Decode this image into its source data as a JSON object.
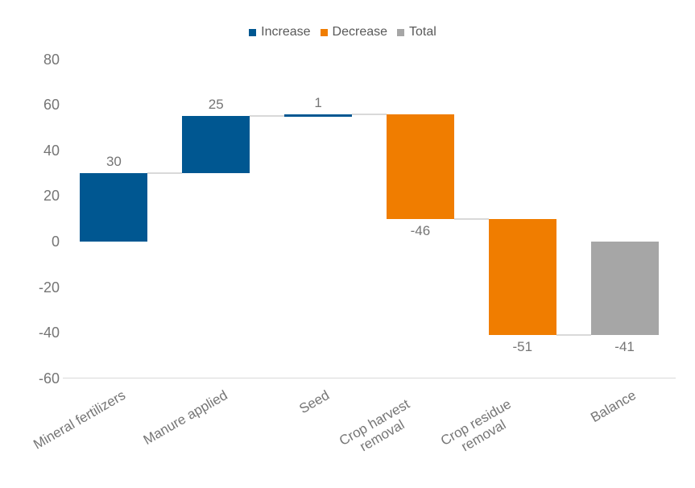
{
  "chart_data": {
    "type": "bar",
    "subtype": "waterfall",
    "title": "",
    "categories": [
      "Mineral fertilizers",
      "Manure applied",
      "Seed",
      "Crop harvest removal",
      "Crop residue removal",
      "Balance"
    ],
    "values": [
      30,
      25,
      1,
      -46,
      -51,
      -41
    ],
    "bar_roles": [
      "increase",
      "increase",
      "increase",
      "decrease",
      "decrease",
      "total"
    ],
    "running_start": [
      0,
      30,
      55,
      56,
      10,
      0
    ],
    "running_end": [
      30,
      55,
      56,
      10,
      -41,
      -41
    ],
    "data_labels": [
      "30",
      "25",
      "1",
      "-46",
      "-51",
      "-41"
    ],
    "label_positions": [
      "above",
      "above",
      "above",
      "below",
      "below",
      "below"
    ],
    "x_labels_text": [
      "Mineral fertilizers",
      "Manure applied",
      "Seed",
      "Crop harvest\nremoval",
      "Crop residue\nremoval",
      "Balance"
    ],
    "ytick_values": [
      80,
      60,
      40,
      20,
      0,
      -20,
      -40,
      -60
    ],
    "ytick_labels": [
      "80",
      "60",
      "40",
      "20",
      "0",
      "-20",
      "-40",
      "-60"
    ],
    "ylim": [
      -60,
      80
    ],
    "grid": false,
    "legend_position": "top",
    "legend": [
      {
        "label": "Increase",
        "role": "increase",
        "color": "#005791"
      },
      {
        "label": "Decrease",
        "role": "decrease",
        "color": "#F07D00"
      },
      {
        "label": "Total",
        "role": "total",
        "color": "#A6A6A6"
      }
    ]
  },
  "colors": {
    "increase": "#005791",
    "decrease": "#F07D00",
    "total": "#A6A6A6",
    "connector": "#D9D9D9",
    "axis_line": "#D9D9D9",
    "tick_text": "#757575",
    "data_label_text": "#757575",
    "legend_text": "#595959",
    "background": "#FFFFFF"
  }
}
